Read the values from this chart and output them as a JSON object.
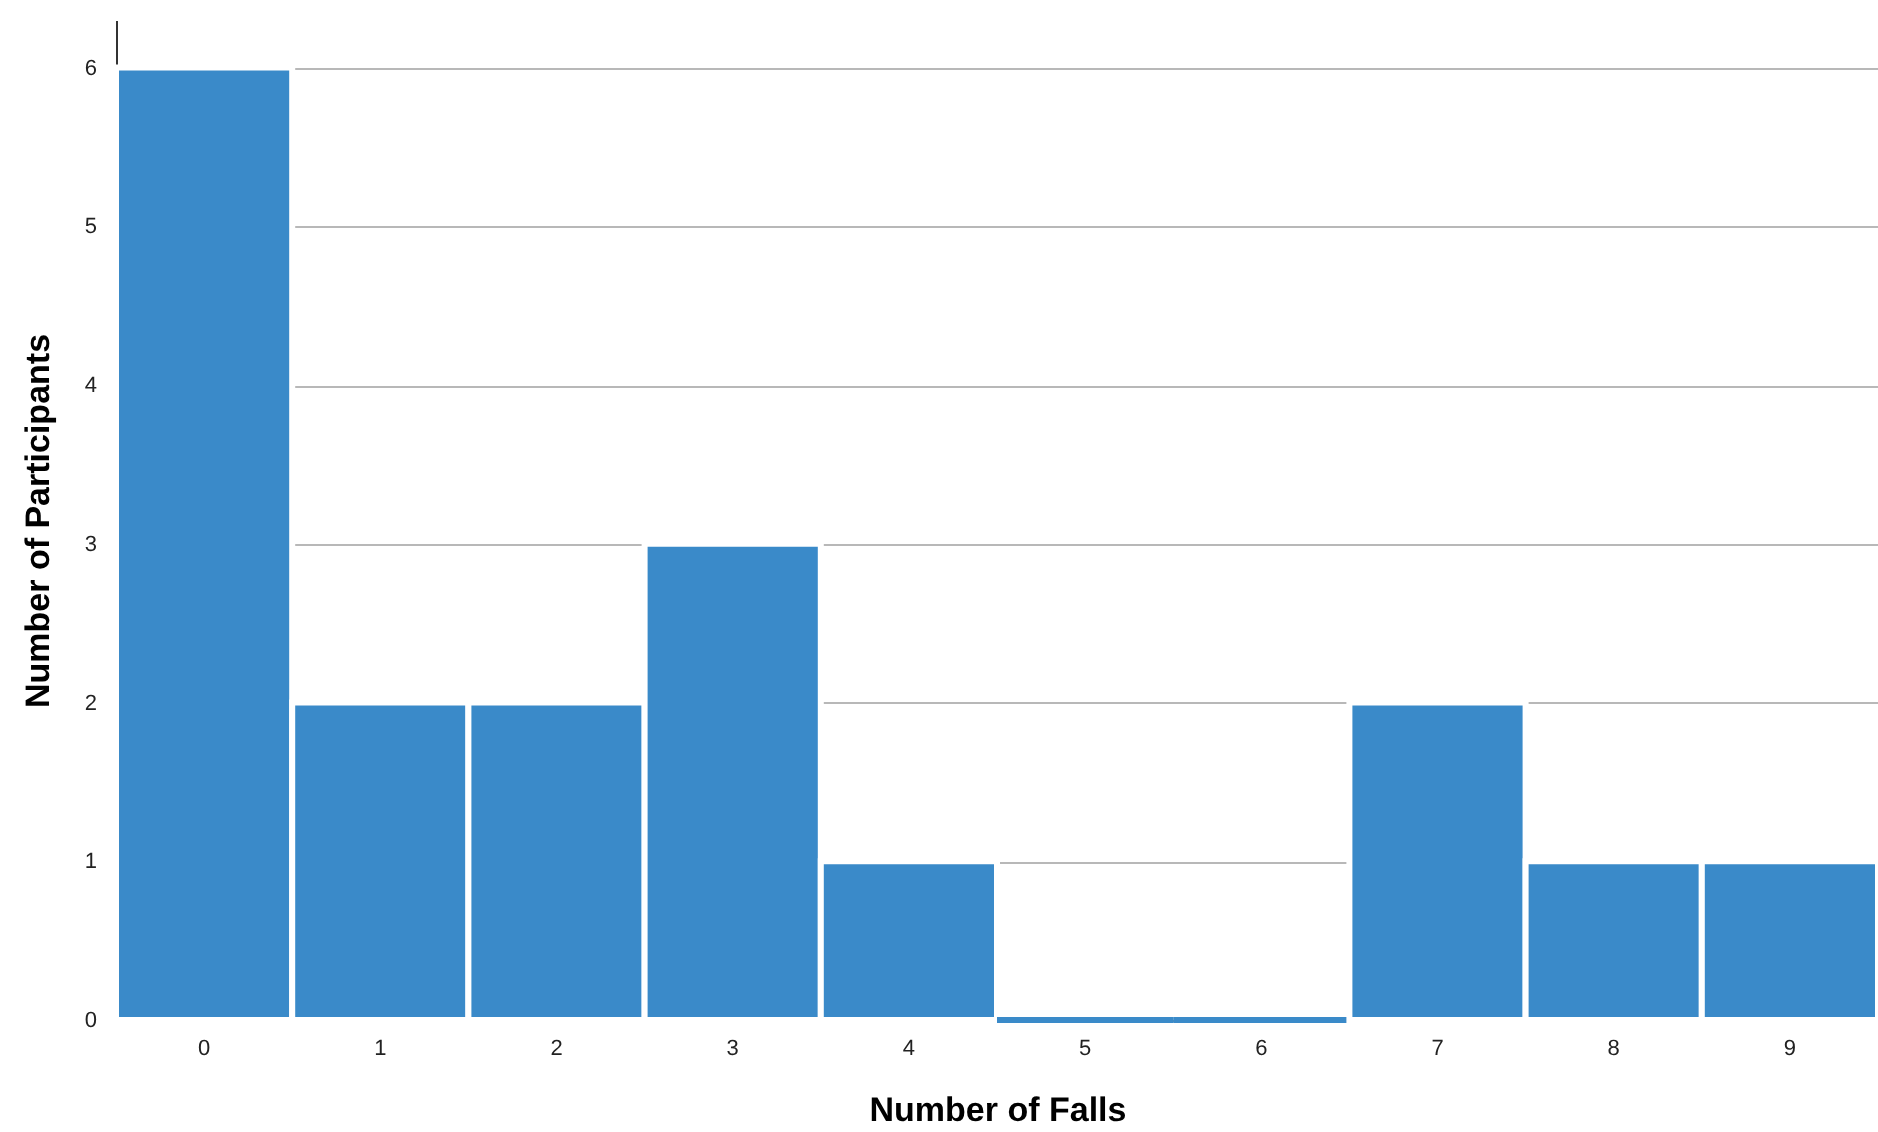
{
  "chart_data": {
    "type": "bar",
    "xlabel": "Number of Falls",
    "ylabel": "Number  of  Participants",
    "categories": [
      "0",
      "1",
      "2",
      "3",
      "4",
      "5",
      "6",
      "7",
      "8",
      "9"
    ],
    "values": [
      6,
      2,
      2,
      3,
      1,
      0,
      0,
      2,
      1,
      1
    ],
    "color": "#3a8ac9",
    "ylim": [
      0,
      6.3
    ],
    "yticks": [
      0,
      1,
      2,
      3,
      4,
      5,
      6
    ],
    "grid": "y"
  }
}
